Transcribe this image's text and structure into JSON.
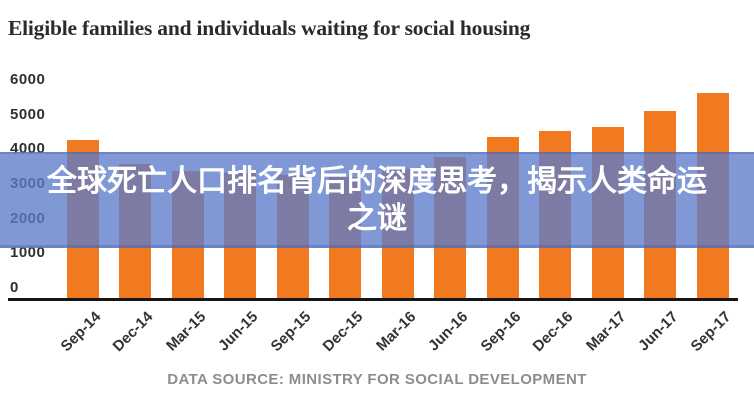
{
  "title": "Eligible families and individuals waiting for social housing",
  "overlay": {
    "line1": "全球死亡人口排名背后的深度思考，揭示人类命运",
    "line2": "之谜",
    "bg_color": "rgba(92,124,203,0.78)",
    "text_color": "#ffffff"
  },
  "footer": {
    "source": "DATA SOURCE: MINISTRY FOR SOCIAL DEVELOPMENT"
  },
  "chart_data": {
    "type": "bar",
    "title": "Eligible families and individuals waiting for social housing",
    "categories": [
      "Sep-14",
      "Dec-14",
      "Mar-15",
      "Jun-15",
      "Sep-15",
      "Dec-15",
      "Mar-16",
      "Jun-16",
      "Sep-16",
      "Dec-16",
      "Mar-17",
      "Jun-17",
      "Sep-17"
    ],
    "values": [
      4350,
      3700,
      3500,
      3450,
      3400,
      3350,
      3550,
      3900,
      4450,
      4600,
      4700,
      5150,
      5650
    ],
    "y_ticks": [
      0,
      1000,
      2000,
      3000,
      4000,
      5000,
      6000
    ],
    "ylim": [
      0,
      6000
    ],
    "xlabel": "",
    "ylabel": "",
    "bar_color": "#f1791f",
    "grid": false,
    "legend": false,
    "x_tick_rotation": -45
  }
}
